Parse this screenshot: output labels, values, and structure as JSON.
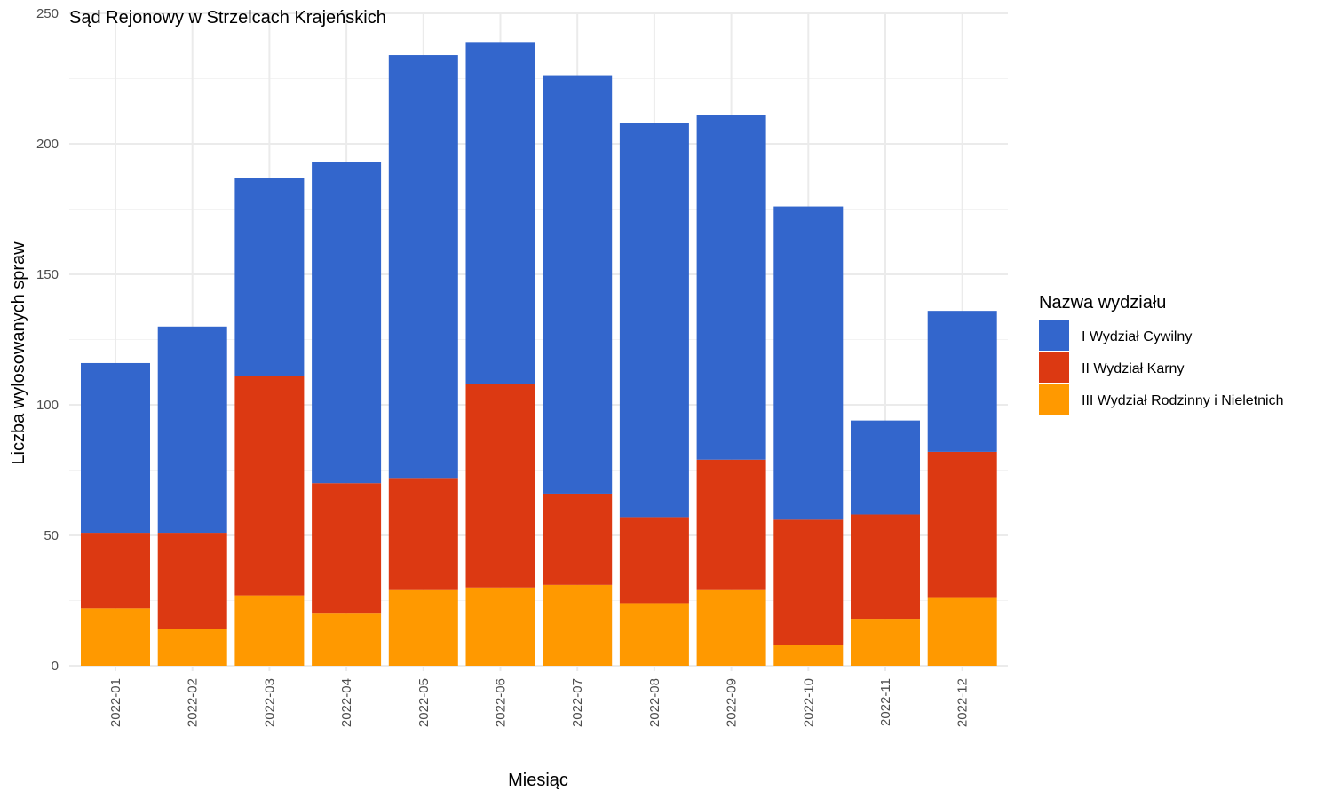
{
  "chart_data": {
    "type": "bar",
    "stacked": true,
    "title": "Sąd Rejonowy w Strzelcach Krajeńskich",
    "xlabel": "Miesiąc",
    "ylabel": "Liczba wylosowanych spraw",
    "ylim": [
      0,
      250
    ],
    "yticks": [
      0,
      50,
      100,
      150,
      200,
      250
    ],
    "grid": true,
    "legend": {
      "title": "Nazwa wydziału",
      "placement": "right"
    },
    "categories": [
      "2022-01",
      "2022-02",
      "2022-03",
      "2022-04",
      "2022-05",
      "2022-06",
      "2022-07",
      "2022-08",
      "2022-09",
      "2022-10",
      "2022-11",
      "2022-12"
    ],
    "series": [
      {
        "name": "I Wydział Cywilny",
        "color": "#3366cc",
        "values": [
          65,
          79,
          76,
          123,
          162,
          131,
          160,
          151,
          132,
          120,
          36,
          54
        ]
      },
      {
        "name": "II Wydział Karny",
        "color": "#dc3912",
        "values": [
          29,
          37,
          84,
          50,
          43,
          78,
          35,
          33,
          50,
          48,
          40,
          56
        ]
      },
      {
        "name": "III Wydział Rodzinny i Nieletnich",
        "color": "#ff9900",
        "values": [
          22,
          14,
          27,
          20,
          29,
          30,
          31,
          24,
          29,
          8,
          18,
          26
        ]
      }
    ]
  }
}
